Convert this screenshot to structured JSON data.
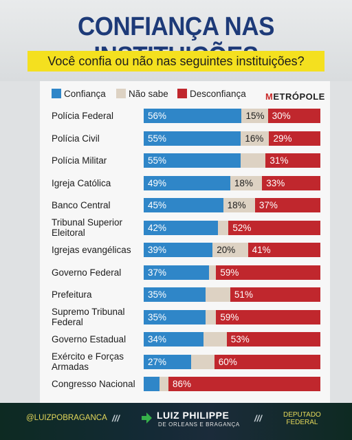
{
  "header": {
    "title": "CONFIANÇA NAS INSTITUIÇÕES",
    "subtitle": "Você confia ou não nas seguintes instituições?"
  },
  "logo": {
    "first": "M",
    "rest": "ETRÓPOLE"
  },
  "colors": {
    "confianca": "#2f86c8",
    "nao_sabe": "#ddd2c3",
    "desconfianca": "#c0272d",
    "title": "#1d3a78",
    "highlight": "#f4e01f"
  },
  "chart_data": {
    "type": "bar",
    "orientation": "horizontal",
    "stacked": true,
    "title": "CONFIANÇA NAS INSTITUIÇÕES",
    "subtitle": "Você confia ou não nas seguintes instituições?",
    "legend_position": "top",
    "categories": [
      [
        "Polícia Federal"
      ],
      [
        "Polícia Civil"
      ],
      [
        "Polícia Militar"
      ],
      [
        "Igreja Católica"
      ],
      [
        "Banco Central"
      ],
      [
        "Tribunal Superior",
        "Eleitoral"
      ],
      [
        "Igrejas evangélicas"
      ],
      [
        "Governo Federal"
      ],
      [
        "Prefeitura"
      ],
      [
        "Supremo Tribunal",
        "Federal"
      ],
      [
        "Governo Estadual"
      ],
      [
        "Exército e Forças",
        "Armadas"
      ],
      [
        "Congresso Nacional"
      ]
    ],
    "series": [
      {
        "name": "Confiança",
        "values": [
          56,
          55,
          55,
          49,
          45,
          42,
          39,
          37,
          35,
          35,
          34,
          27,
          9
        ],
        "labels": [
          "56%",
          "55%",
          "55%",
          "49%",
          "45%",
          "42%",
          "39%",
          "37%",
          "35%",
          "35%",
          "34%",
          "27%",
          ""
        ]
      },
      {
        "name": "Não sabe",
        "values": [
          15,
          16,
          14,
          18,
          18,
          6,
          20,
          4,
          14,
          6,
          13,
          13,
          5
        ],
        "labels": [
          "15%",
          "16%",
          "",
          "18%",
          "18%",
          "",
          "20%",
          "",
          "",
          "",
          "",
          "",
          ""
        ]
      },
      {
        "name": "Desconfiança",
        "values": [
          30,
          29,
          31,
          33,
          37,
          52,
          41,
          59,
          51,
          59,
          53,
          60,
          86
        ],
        "labels": [
          "30%",
          "29%",
          "31%",
          "33%",
          "37%",
          "52%",
          "41%",
          "59%",
          "51%",
          "59%",
          "53%",
          "60%",
          "86%"
        ]
      }
    ]
  },
  "footer": {
    "handle": "@LUIZPOBRAGANCA",
    "separator": "///",
    "name": "LUIZ PHILIPPE",
    "subname": "DE ORLEANS E BRAGANÇA",
    "role_line1": "DEPUTADO",
    "role_line2": "FEDERAL"
  }
}
